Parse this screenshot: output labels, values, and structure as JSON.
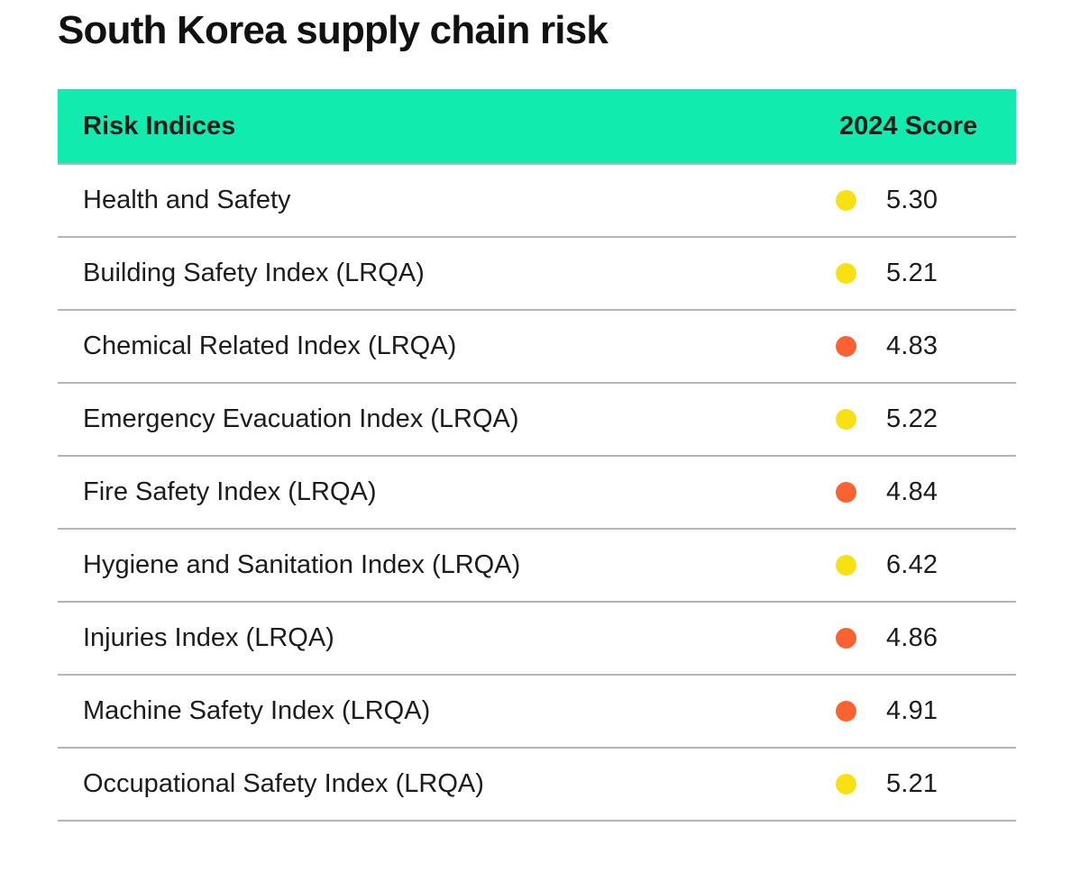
{
  "page": {
    "title": "South Korea supply chain risk"
  },
  "table": {
    "header": {
      "col1": "Risk Indices",
      "col2": "2024 Score"
    },
    "rows": [
      {
        "label": "Health and Safety",
        "score": "5.30",
        "status": "yellow"
      },
      {
        "label": "Building Safety Index (LRQA)",
        "score": "5.21",
        "status": "yellow"
      },
      {
        "label": "Chemical Related Index (LRQA)",
        "score": "4.83",
        "status": "orange"
      },
      {
        "label": "Emergency Evacuation Index (LRQA)",
        "score": "5.22",
        "status": "yellow"
      },
      {
        "label": "Fire Safety Index (LRQA)",
        "score": "4.84",
        "status": "orange"
      },
      {
        "label": "Hygiene and Sanitation Index (LRQA)",
        "score": "6.42",
        "status": "yellow"
      },
      {
        "label": "Injuries Index (LRQA)",
        "score": "4.86",
        "status": "orange"
      },
      {
        "label": "Machine Safety Index (LRQA)",
        "score": "4.91",
        "status": "orange"
      },
      {
        "label": "Occupational Safety Index (LRQA)",
        "score": "5.21",
        "status": "yellow"
      }
    ],
    "colors": {
      "header_bg": "#12EBAE",
      "dot_yellow": "#F8E112",
      "dot_orange": "#FA6331",
      "divider": "#B4B4B4",
      "text": "#1C1C1C",
      "title_text": "#111111"
    }
  },
  "chart_data": {
    "type": "table",
    "title": "South Korea supply chain risk",
    "columns": [
      "Risk Indices",
      "2024 Score"
    ],
    "rows": [
      {
        "risk_index": "Health and Safety",
        "score_2024": 5.3,
        "marker_color": "yellow"
      },
      {
        "risk_index": "Building Safety Index (LRQA)",
        "score_2024": 5.21,
        "marker_color": "yellow"
      },
      {
        "risk_index": "Chemical Related Index (LRQA)",
        "score_2024": 4.83,
        "marker_color": "orange"
      },
      {
        "risk_index": "Emergency Evacuation Index (LRQA)",
        "score_2024": 5.22,
        "marker_color": "yellow"
      },
      {
        "risk_index": "Fire Safety Index (LRQA)",
        "score_2024": 4.84,
        "marker_color": "orange"
      },
      {
        "risk_index": "Hygiene and Sanitation Index (LRQA)",
        "score_2024": 6.42,
        "marker_color": "yellow"
      },
      {
        "risk_index": "Injuries Index (LRQA)",
        "score_2024": 4.86,
        "marker_color": "orange"
      },
      {
        "risk_index": "Machine Safety Index (LRQA)",
        "score_2024": 4.91,
        "marker_color": "orange"
      },
      {
        "risk_index": "Occupational Safety Index (LRQA)",
        "score_2024": 5.21,
        "marker_color": "yellow"
      }
    ],
    "marker_color_hex": {
      "yellow": "#F8E112",
      "orange": "#FA6331"
    },
    "legend": "none",
    "grid": "horizontal row dividers only"
  }
}
